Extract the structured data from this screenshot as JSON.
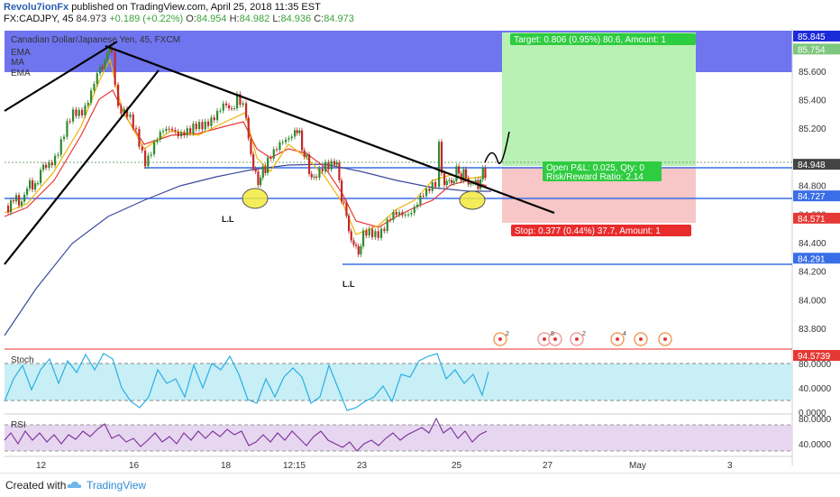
{
  "header": {
    "author": "Revolu7ionFx",
    "published": "published on TradingView.com, April 25, 2018 11:35 EST",
    "symbol": "FX:CADJPY, 45",
    "last": "84.973",
    "change": "+0.189 (+0.22%)",
    "o_label": "O:",
    "o": "84.954",
    "h_label": "H:",
    "h": "84.982",
    "l_label": "L:",
    "l": "84.936",
    "c_label": "C:",
    "c": "84.973"
  },
  "legend": {
    "title": "Canadian Dollar/Japanese Yen, 45, FXCM",
    "items": [
      "EMA",
      "MA",
      "EMA"
    ]
  },
  "colors": {
    "candle_up": "#2e8b2e",
    "candle_down": "#c62828",
    "ema_fast": "#f0b400",
    "ema_slow": "#e53935",
    "ma": "#3b4a9c",
    "target_zone": "#b9f0b4",
    "stop_zone": "#f7c6c6",
    "blue_zone": "#6f74ef",
    "level_line": "#3a6ee8",
    "stoch_fill": "#c8eef6",
    "stoch_line": "#2ab0e3",
    "rsi_fill": "#e6d6f0",
    "rsi_line": "#7b2f9a"
  },
  "chart_data": {
    "type": "candlestick",
    "price_axis": {
      "ticks": [
        "85.600",
        "85.400",
        "85.200",
        "84.800",
        "84.600",
        "84.400",
        "84.200",
        "84.000",
        "83.800"
      ],
      "ylim": [
        83.75,
        85.87
      ]
    },
    "time_axis": {
      "ticks": [
        "12",
        "16",
        "18",
        "12:15",
        "23",
        "25",
        "27",
        "May",
        "3"
      ]
    },
    "price_labels": [
      {
        "text": "85.845",
        "value": 85.845,
        "color": "#1b2bd9"
      },
      {
        "text": "85.754",
        "value": 85.754,
        "color": "#7ec77e"
      },
      {
        "text": "84.948",
        "value": 84.948,
        "color": "#444444"
      },
      {
        "text": "84.727",
        "value": 84.727,
        "color": "#3a6ee8"
      },
      {
        "text": "84.571",
        "value": 84.571,
        "color": "#e53935"
      },
      {
        "text": "84.291",
        "value": 84.291,
        "color": "#3a6ee8"
      }
    ],
    "position": {
      "target_text": "Target: 0.806 (0.95%) 80.6, Amount: 1",
      "stop_text": "Stop: 0.377 (0.44%) 37.7, Amount: 1",
      "pnl_text": "Open P&L: 0.025, Qty: 0",
      "rr_text": "Risk/Reward Ratio: 2.14",
      "entry": 84.948,
      "target": 85.754,
      "stop": 84.571
    },
    "levels": [
      84.948,
      84.727,
      84.291
    ],
    "annotations": [
      {
        "text": "L.L"
      },
      {
        "text": "L.L"
      }
    ],
    "stoch": {
      "name": "Stoch",
      "ticks": [
        "80.0000",
        "40.0000",
        "0.0000"
      ],
      "value_label": "94.5739"
    },
    "rsi": {
      "name": "RSI",
      "ticks": [
        "80.0000",
        "40.0000"
      ]
    }
  },
  "footer": {
    "created": "Created with",
    "brand": "TradingView"
  }
}
